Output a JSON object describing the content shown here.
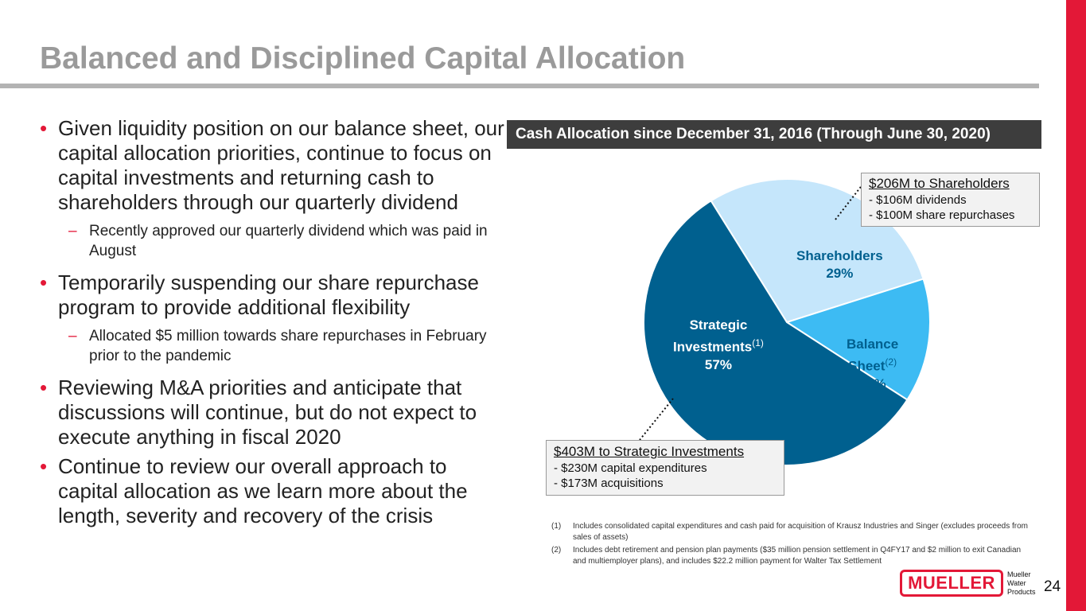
{
  "slide": {
    "title": "Balanced and Disciplined Capital Allocation",
    "page_number": "24"
  },
  "bullets": [
    {
      "text": "Given liquidity position on our balance sheet, our capital allocation priorities, continue to focus on capital investments and returning cash to shareholders through our quarterly dividend",
      "sub": [
        "Recently approved our quarterly dividend which was paid in August"
      ]
    },
    {
      "text": "Temporarily suspending our share repurchase program to provide additional flexibility",
      "sub": [
        "Allocated $5 million towards share repurchases in February prior to the pandemic"
      ]
    },
    {
      "text": "Reviewing M&A priorities and anticipate that discussions will continue, but do not expect to execute anything in fiscal 2020",
      "sub": []
    },
    {
      "text": "Continue to review our overall approach to capital allocation as we learn more about the length, severity and recovery of the crisis",
      "sub": []
    }
  ],
  "chart_data": {
    "type": "pie",
    "title": "Cash Allocation since December 31, 2016 (Through June 30, 2020)",
    "slices": [
      {
        "name": "Shareholders",
        "footnote": "",
        "value": 29,
        "label": "29%",
        "color": "#c5e6fb"
      },
      {
        "name": "Balance Sheet",
        "footnote": "(2)",
        "value": 14,
        "label": "14%",
        "color": "#3dbbf3"
      },
      {
        "name": "Strategic Investments",
        "footnote": "(1)",
        "value": 57,
        "label": "57%",
        "color": "#00608f"
      }
    ],
    "labels": {
      "shareholders": {
        "name": "Shareholders",
        "pct": "29%"
      },
      "balance": {
        "name1": "Balance",
        "name2": "Sheet",
        "sup": "(2)",
        "pct": "14%"
      },
      "strategic": {
        "name1": "Strategic",
        "name2": "Investments",
        "sup": "(1)",
        "pct": "57%"
      }
    },
    "callouts": {
      "shareholders": {
        "heading": "$206M to Shareholders",
        "lines": [
          "- $106M dividends",
          "- $100M share repurchases"
        ]
      },
      "strategic": {
        "heading": "$403M to Strategic Investments",
        "lines": [
          "- $230M capital expenditures",
          "- $173M acquisitions"
        ]
      }
    }
  },
  "footnotes": [
    {
      "num": "(1)",
      "text": "Includes consolidated capital expenditures and cash paid for acquisition of Krausz Industries and Singer (excludes proceeds from sales of assets)"
    },
    {
      "num": "(2)",
      "text": "Includes debt retirement and pension plan payments ($35 million pension settlement in Q4FY17 and $2 million to exit Canadian and multiemployer plans), and includes $22.2 million payment for Walter Tax Settlement"
    }
  ],
  "logo": {
    "wordmark": "MUELLER",
    "sub": [
      "Mueller",
      "Water",
      "Products"
    ]
  },
  "colors": {
    "accent_red": "#e31837",
    "title_gray": "#9a9a9a",
    "header_bg": "#3d3d3d"
  }
}
